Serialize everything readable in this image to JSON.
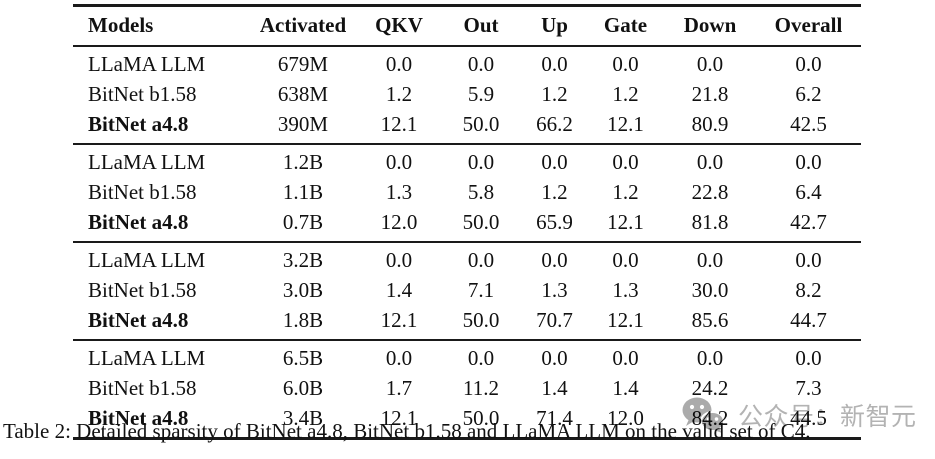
{
  "table": {
    "headers": [
      "Models",
      "Activated",
      "QKV",
      "Out",
      "Up",
      "Gate",
      "Down",
      "Overall"
    ],
    "groups": [
      {
        "rows": [
          {
            "model": "LLaMA LLM",
            "bold": false,
            "values": [
              "679M",
              "0.0",
              "0.0",
              "0.0",
              "0.0",
              "0.0",
              "0.0"
            ]
          },
          {
            "model": "BitNet b1.58",
            "bold": false,
            "values": [
              "638M",
              "1.2",
              "5.9",
              "1.2",
              "1.2",
              "21.8",
              "6.2"
            ]
          },
          {
            "model": "BitNet a4.8",
            "bold": true,
            "values": [
              "390M",
              "12.1",
              "50.0",
              "66.2",
              "12.1",
              "80.9",
              "42.5"
            ]
          }
        ]
      },
      {
        "rows": [
          {
            "model": "LLaMA LLM",
            "bold": false,
            "values": [
              "1.2B",
              "0.0",
              "0.0",
              "0.0",
              "0.0",
              "0.0",
              "0.0"
            ]
          },
          {
            "model": "BitNet b1.58",
            "bold": false,
            "values": [
              "1.1B",
              "1.3",
              "5.8",
              "1.2",
              "1.2",
              "22.8",
              "6.4"
            ]
          },
          {
            "model": "BitNet a4.8",
            "bold": true,
            "values": [
              "0.7B",
              "12.0",
              "50.0",
              "65.9",
              "12.1",
              "81.8",
              "42.7"
            ]
          }
        ]
      },
      {
        "rows": [
          {
            "model": "LLaMA LLM",
            "bold": false,
            "values": [
              "3.2B",
              "0.0",
              "0.0",
              "0.0",
              "0.0",
              "0.0",
              "0.0"
            ]
          },
          {
            "model": "BitNet b1.58",
            "bold": false,
            "values": [
              "3.0B",
              "1.4",
              "7.1",
              "1.3",
              "1.3",
              "30.0",
              "8.2"
            ]
          },
          {
            "model": "BitNet a4.8",
            "bold": true,
            "values": [
              "1.8B",
              "12.1",
              "50.0",
              "70.7",
              "12.1",
              "85.6",
              "44.7"
            ]
          }
        ]
      },
      {
        "rows": [
          {
            "model": "LLaMA LLM",
            "bold": false,
            "values": [
              "6.5B",
              "0.0",
              "0.0",
              "0.0",
              "0.0",
              "0.0",
              "0.0"
            ]
          },
          {
            "model": "BitNet b1.58",
            "bold": false,
            "values": [
              "6.0B",
              "1.7",
              "11.2",
              "1.4",
              "1.4",
              "24.2",
              "7.3"
            ]
          },
          {
            "model": "BitNet a4.8",
            "bold": true,
            "values": [
              "3.4B",
              "12.1",
              "50.0",
              "71.4",
              "12.0",
              "84.2",
              "44.5"
            ]
          }
        ]
      }
    ]
  },
  "caption": "Table 2: Detailed sparsity of BitNet a4.8, BitNet b1.58 and LLaMA LLM on the valid set of C4.",
  "watermark": {
    "icon": "wechat-icon",
    "text": "公众号：新智元",
    "color": "#b3b3b3"
  }
}
